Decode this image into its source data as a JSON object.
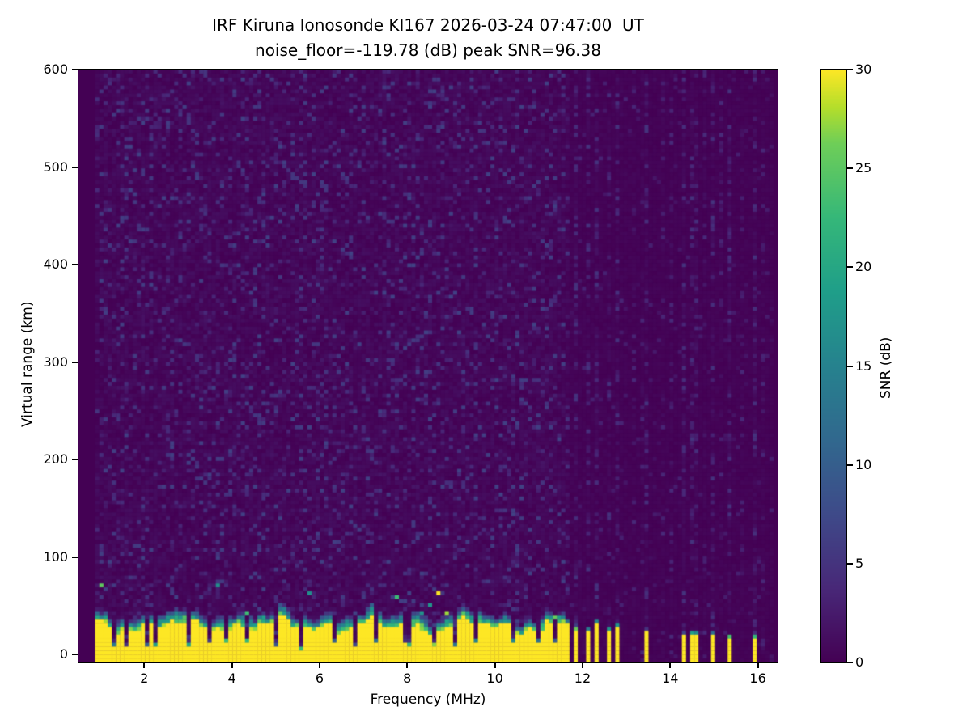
{
  "chart_data": {
    "type": "heatmap",
    "title": "IRF Kiruna Ionosonde KI167 2026-03-24 07:47:00  UT",
    "subtitle": "noise_floor=-119.78 (dB) peak SNR=96.38",
    "station": "KI167",
    "timestamp_ut": "2026-03-24 07:47:00",
    "noise_floor_db": -119.78,
    "peak_snr_db": 96.38,
    "xlabel": "Frequency (MHz)",
    "ylabel": "Virtual range (km)",
    "colorbar_label": "SNR (dB)",
    "xlim": [
      0.5,
      16.45
    ],
    "ylim": [
      -8,
      600
    ],
    "clim": [
      0,
      30
    ],
    "x_ticks": [
      2,
      4,
      6,
      8,
      10,
      12,
      14,
      16
    ],
    "y_ticks": [
      0,
      100,
      200,
      300,
      400,
      500,
      600
    ],
    "colorbar_ticks": [
      0,
      5,
      10,
      15,
      20,
      25,
      30
    ],
    "colormap": "viridis",
    "colormap_stops": [
      [
        0.0,
        68,
        1,
        84
      ],
      [
        0.125,
        72,
        40,
        120
      ],
      [
        0.25,
        62,
        74,
        137
      ],
      [
        0.375,
        49,
        104,
        142
      ],
      [
        0.5,
        38,
        130,
        142
      ],
      [
        0.625,
        31,
        158,
        137
      ],
      [
        0.75,
        53,
        183,
        121
      ],
      [
        0.875,
        110,
        206,
        88
      ],
      [
        0.9375,
        181,
        222,
        43
      ],
      [
        1.0,
        253,
        231,
        37
      ]
    ],
    "legend": "none",
    "grid": "off",
    "render": {
      "seed": 1337,
      "grid_cols": 168,
      "grid_rows": 150,
      "features": {
        "data_freq_range_mhz": [
          0.9,
          16.38
        ],
        "background_noise_db_range": [
          0,
          7
        ],
        "ground_echo_band": {
          "freq_range_mhz": [
            0.9,
            11.63
          ],
          "top_km_mean": 30,
          "top_km_jitter": 9,
          "fade_km": 13,
          "snr_db": 30
        },
        "notch_freqs_mhz": [
          1.35,
          1.6,
          2.05,
          2.3,
          3.05,
          3.45,
          3.85,
          4.35,
          5.0,
          5.55,
          6.3,
          6.85,
          7.3,
          8.0,
          8.6,
          9.05,
          9.6,
          10.4,
          11.0,
          11.35
        ],
        "comb_stripes": {
          "freq_range_mhz": [
            11.63,
            13.05
          ],
          "period_mhz": 0.158,
          "duty": 0.45,
          "top_km": 26,
          "snr_db": 30
        },
        "isolated_stripes_mhz": [
          13.5,
          14.3,
          14.55,
          15.0,
          15.35,
          15.9
        ],
        "faint_lines_mhz": [
          13.2,
          13.35,
          13.8,
          14.05,
          14.8,
          15.2,
          15.65,
          16.1
        ]
      }
    }
  }
}
